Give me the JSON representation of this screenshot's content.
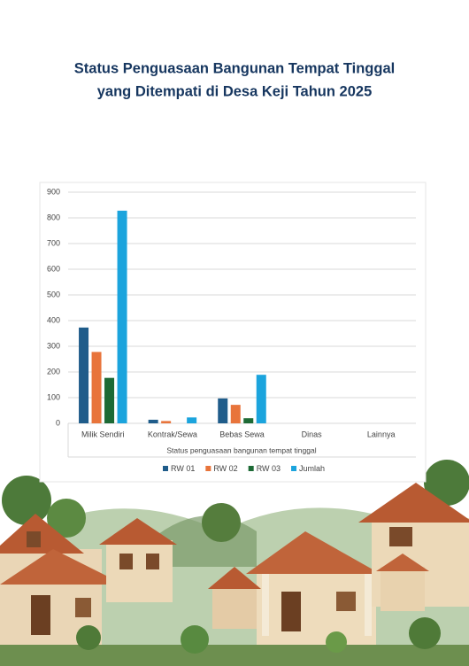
{
  "chart_data": {
    "type": "bar",
    "title": "Status Penguasaan Bangunan Tempat Tinggal",
    "subtitle": "yang Ditempati di Desa Keji Tahun 2025",
    "x_label": "Status penguasaan bangunan tempat tinggal",
    "categories": [
      "Milik Sendiri",
      "Kontrak/Sewa",
      "Bebas Sewa",
      "Dinas",
      "Lainnya"
    ],
    "series": [
      {
        "name": "RW 01",
        "color": "#1f5c8a",
        "values": [
          373,
          14,
          97,
          0,
          0
        ]
      },
      {
        "name": "RW 02",
        "color": "#e8743b",
        "values": [
          278,
          9,
          72,
          0,
          0
        ]
      },
      {
        "name": "RW 03",
        "color": "#1d6a35",
        "values": [
          177,
          0,
          20,
          0,
          0
        ]
      },
      {
        "name": "Jumlah",
        "color": "#1ba4dd",
        "values": [
          828,
          23,
          189,
          0,
          0
        ]
      }
    ],
    "ylim": [
      0,
      900
    ],
    "yticks": [
      0,
      100,
      200,
      300,
      400,
      500,
      600,
      700,
      800,
      900
    ],
    "grid": true,
    "legend": "bottom"
  }
}
